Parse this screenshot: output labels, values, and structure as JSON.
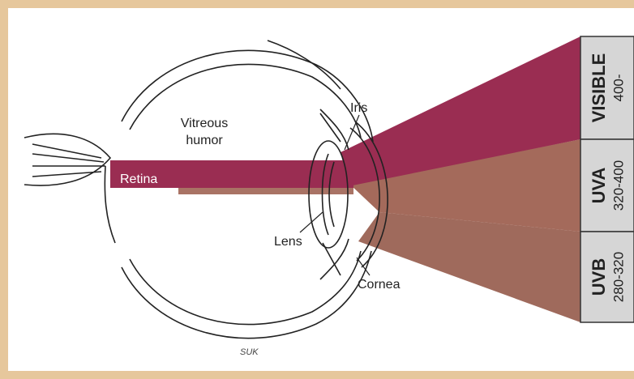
{
  "labels": {
    "vitreous": "Vitreous",
    "humor": "humor",
    "iris": "Iris",
    "retina": "Retina",
    "lens": "Lens",
    "cornea": "Cornea",
    "signature": "SUK"
  },
  "bands": [
    {
      "name": "VISIBLE",
      "range": "400-"
    },
    {
      "name": "UVA",
      "range": "320-400"
    },
    {
      "name": "UVB",
      "range": "280-320"
    }
  ]
}
